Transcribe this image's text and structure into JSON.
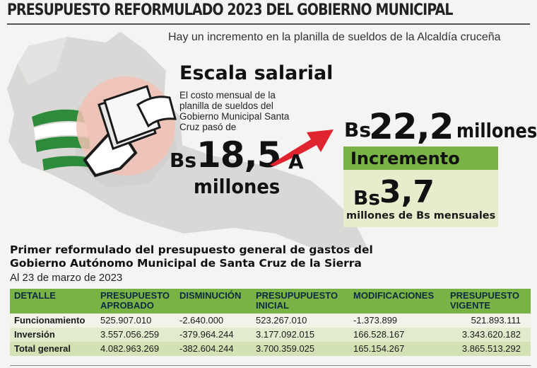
{
  "header": {
    "title": "PRESUPUESTO REFORMULADO 2023 DEL GOBIERNO MUNICIPAL",
    "subtitle": "Hay un incremento en la planilla de sueldos de la Alcaldía cruceña"
  },
  "infographic": {
    "section_title": "Escala salarial",
    "description": "El costo mensual de la planilla de sueldos del Gobierno Municipal Santa Cruz pasó de",
    "from": {
      "currency": "Bs",
      "amount": "18,5",
      "unit": "millones"
    },
    "connector": "A",
    "to": {
      "currency": "Bs",
      "amount": "22,2",
      "unit": "millones"
    },
    "increment": {
      "label": "Incremento",
      "currency": "Bs",
      "amount": "3,7",
      "unit": "millones de Bs mensuales"
    },
    "colors": {
      "accent_green": "#79b345",
      "light_green": "#e5edcc",
      "arrow_red": "#e0242f",
      "map_gray": "#d9d8d6"
    },
    "icons": [
      "bolivia-map-icon",
      "santa-cruz-flag-icon",
      "hand-giving-money-icon",
      "arrow-right-icon"
    ]
  },
  "table": {
    "title_line1": "Primer reformulado del presupuesto general de gastos del",
    "title_line2": "Gobierno Autónomo Municipal de Santa Cruz de la Sierra",
    "date": "Al 23 de marzo de 2023",
    "columns": [
      "DETALLE",
      "PRESUPUESTO APROBADO",
      "DISMINUCIÓN",
      "PRESUPUPUESTO INICIAL",
      "MODIFICACIONES",
      "PRESUPUESTO VIGENTE"
    ],
    "rows": [
      {
        "detalle": "Funcionamiento",
        "aprobado": "525.907.010",
        "disminucion": "-2.640.000",
        "inicial": "523.267.010",
        "modificaciones": "-1.373.899",
        "vigente": "521.893.111"
      },
      {
        "detalle": "Inversión",
        "aprobado": "3.557.056.259",
        "disminucion": "-379.964.244",
        "inicial": "3.177.092.015",
        "modificaciones": "166.528.167",
        "vigente": "3.343.620.182"
      },
      {
        "detalle": "Total general",
        "aprobado": "4.082.963.269",
        "disminucion": "-382.604.244",
        "inicial": "3.700.359.025",
        "modificaciones": "165.154.267",
        "vigente": "3.865.513.292"
      }
    ]
  }
}
